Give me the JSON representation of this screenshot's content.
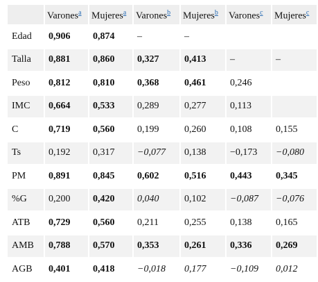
{
  "table": {
    "columns": [
      {
        "label": "",
        "sup": ""
      },
      {
        "label": "Varones",
        "sup": "a"
      },
      {
        "label": "Mujeres",
        "sup": "a"
      },
      {
        "label": "Varones",
        "sup": "b"
      },
      {
        "label": "Mujeres",
        "sup": "b"
      },
      {
        "label": "Varones",
        "sup": "c"
      },
      {
        "label": "Mujeres",
        "sup": "c"
      }
    ],
    "rows": [
      {
        "label": "Edad",
        "cells": [
          {
            "v": "0,906",
            "s": "b"
          },
          {
            "v": "0,874",
            "s": "b"
          },
          {
            "v": "–",
            "s": ""
          },
          {
            "v": "–",
            "s": ""
          },
          {
            "v": "",
            "s": ""
          },
          {
            "v": "",
            "s": ""
          }
        ]
      },
      {
        "label": "Talla",
        "cells": [
          {
            "v": "0,881",
            "s": "b"
          },
          {
            "v": "0,860",
            "s": "b"
          },
          {
            "v": "0,327",
            "s": "b"
          },
          {
            "v": "0,413",
            "s": "b"
          },
          {
            "v": "–",
            "s": ""
          },
          {
            "v": "–",
            "s": ""
          }
        ]
      },
      {
        "label": "Peso",
        "cells": [
          {
            "v": "0,812",
            "s": "b"
          },
          {
            "v": "0,810",
            "s": "b"
          },
          {
            "v": "0,368",
            "s": "b"
          },
          {
            "v": "0,461",
            "s": "b"
          },
          {
            "v": "0,246",
            "s": ""
          },
          {
            "v": "",
            "s": ""
          }
        ]
      },
      {
        "label": "IMC",
        "cells": [
          {
            "v": "0,664",
            "s": "b"
          },
          {
            "v": "0,533",
            "s": "b"
          },
          {
            "v": "0,289",
            "s": ""
          },
          {
            "v": "0,277",
            "s": ""
          },
          {
            "v": "0,113",
            "s": ""
          },
          {
            "v": "",
            "s": ""
          }
        ]
      },
      {
        "label": "C",
        "cells": [
          {
            "v": "0,719",
            "s": "b"
          },
          {
            "v": "0,560",
            "s": "b"
          },
          {
            "v": "0,199",
            "s": ""
          },
          {
            "v": "0,260",
            "s": ""
          },
          {
            "v": "0,108",
            "s": ""
          },
          {
            "v": "0,155",
            "s": ""
          }
        ]
      },
      {
        "label": "Ts",
        "cells": [
          {
            "v": "0,192",
            "s": ""
          },
          {
            "v": "0,317",
            "s": ""
          },
          {
            "v": "−0,077",
            "s": "i"
          },
          {
            "v": "0,138",
            "s": ""
          },
          {
            "v": "−0,173",
            "s": ""
          },
          {
            "v": "−0,080",
            "s": "i"
          }
        ]
      },
      {
        "label": "PM",
        "cells": [
          {
            "v": "0,891",
            "s": "b"
          },
          {
            "v": "0,845",
            "s": "b"
          },
          {
            "v": "0,602",
            "s": "b"
          },
          {
            "v": "0,516",
            "s": "b"
          },
          {
            "v": "0,443",
            "s": "b"
          },
          {
            "v": "0,345",
            "s": "b"
          }
        ]
      },
      {
        "label": "%G",
        "cells": [
          {
            "v": "0,200",
            "s": ""
          },
          {
            "v": "0,420",
            "s": "b"
          },
          {
            "v": "0,040",
            "s": "i"
          },
          {
            "v": "0,102",
            "s": ""
          },
          {
            "v": "−0,087",
            "s": "i"
          },
          {
            "v": "−0,076",
            "s": "i"
          }
        ]
      },
      {
        "label": "ATB",
        "cells": [
          {
            "v": "0,729",
            "s": "b"
          },
          {
            "v": "0,560",
            "s": "b"
          },
          {
            "v": "0,211",
            "s": ""
          },
          {
            "v": "0,255",
            "s": ""
          },
          {
            "v": "0,138",
            "s": ""
          },
          {
            "v": "0,165",
            "s": ""
          }
        ]
      },
      {
        "label": "AMB",
        "cells": [
          {
            "v": "0,788",
            "s": "b"
          },
          {
            "v": "0,570",
            "s": "b"
          },
          {
            "v": "0,353",
            "s": "b"
          },
          {
            "v": "0,261",
            "s": "b"
          },
          {
            "v": "0,336",
            "s": "b"
          },
          {
            "v": "0,269",
            "s": "b"
          }
        ]
      },
      {
        "label": "AGB",
        "cells": [
          {
            "v": "0,401",
            "s": "b"
          },
          {
            "v": "0,418",
            "s": "b"
          },
          {
            "v": "−0,018",
            "s": "i"
          },
          {
            "v": "0,177",
            "s": "i"
          },
          {
            "v": "−0,109",
            "s": "i"
          },
          {
            "v": "0,012",
            "s": "i"
          }
        ]
      }
    ]
  }
}
